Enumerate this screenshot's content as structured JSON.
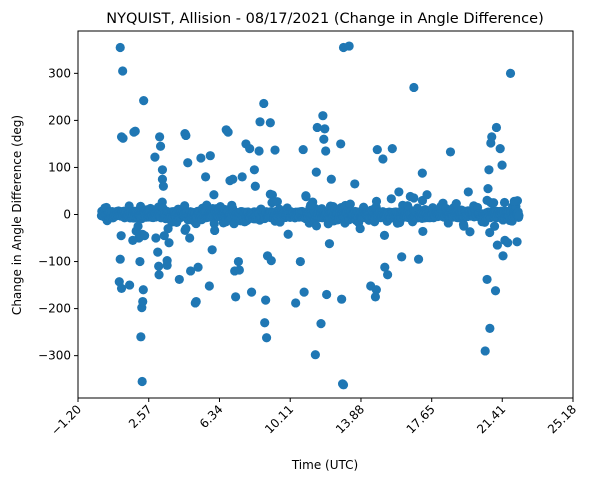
{
  "chart_data": {
    "type": "scatter",
    "title": "NYQUIST, Allision - 08/17/2021 (Change in Angle Difference)",
    "xlabel": "Time (UTC)",
    "ylabel": "Change in Angle Difference (deg)",
    "xlim": [
      -1.2,
      25.18
    ],
    "ylim": [
      -390,
      390
    ],
    "x_ticks": [
      -1.2,
      2.57,
      6.34,
      10.11,
      13.88,
      17.65,
      21.41,
      25.18
    ],
    "x_tick_labels": [
      "−1.20",
      "2.57",
      "6.34",
      "10.11",
      "13.88",
      "17.65",
      "21.41",
      "25.18"
    ],
    "y_ticks": [
      -300,
      -200,
      -100,
      0,
      100,
      200,
      300
    ],
    "y_tick_labels": [
      "−300",
      "−200",
      "−100",
      "0",
      "100",
      "200",
      "300"
    ],
    "grid": false,
    "marker_color": "#1f77b4",
    "points": [
      [
        1.05,
        355
      ],
      [
        1.18,
        305
      ],
      [
        1.12,
        165
      ],
      [
        1.2,
        162
      ],
      [
        1.0,
        -143
      ],
      [
        1.12,
        -157
      ],
      [
        1.55,
        -150
      ],
      [
        1.1,
        -45
      ],
      [
        1.05,
        -95
      ],
      [
        2.22,
        -355
      ],
      [
        2.3,
        242
      ],
      [
        2.15,
        -260
      ],
      [
        2.2,
        -198
      ],
      [
        2.25,
        -185
      ],
      [
        2.28,
        -160
      ],
      [
        2.1,
        -100
      ],
      [
        2.05,
        -50
      ],
      [
        2.35,
        -45
      ],
      [
        1.78,
        175
      ],
      [
        1.85,
        177
      ],
      [
        1.72,
        -55
      ],
      [
        1.9,
        -35
      ],
      [
        2.0,
        -25
      ],
      [
        2.9,
        122
      ],
      [
        2.95,
        -50
      ],
      [
        3.15,
        165
      ],
      [
        3.2,
        145
      ],
      [
        3.3,
        95
      ],
      [
        3.3,
        75
      ],
      [
        3.35,
        60
      ],
      [
        3.1,
        -110
      ],
      [
        3.12,
        -128
      ],
      [
        3.05,
        -80
      ],
      [
        3.4,
        -45
      ],
      [
        3.55,
        -108
      ],
      [
        3.55,
        -98
      ],
      [
        3.65,
        -60
      ],
      [
        3.6,
        -30
      ],
      [
        4.2,
        -138
      ],
      [
        4.5,
        172
      ],
      [
        4.55,
        168
      ],
      [
        4.65,
        110
      ],
      [
        4.55,
        -30
      ],
      [
        4.75,
        -50
      ],
      [
        4.8,
        -120
      ],
      [
        5.2,
        -112
      ],
      [
        5.05,
        -188
      ],
      [
        5.1,
        -185
      ],
      [
        5.35,
        120
      ],
      [
        5.6,
        80
      ],
      [
        5.85,
        125
      ],
      [
        5.8,
        -152
      ],
      [
        5.95,
        -75
      ],
      [
        6.7,
        180
      ],
      [
        6.8,
        175
      ],
      [
        6.9,
        72
      ],
      [
        7.05,
        75
      ],
      [
        7.2,
        -175
      ],
      [
        7.15,
        -120
      ],
      [
        7.35,
        -100
      ],
      [
        7.4,
        -118
      ],
      [
        7.55,
        80
      ],
      [
        7.75,
        150
      ],
      [
        7.95,
        140
      ],
      [
        8.05,
        -165
      ],
      [
        8.2,
        95
      ],
      [
        8.25,
        60
      ],
      [
        8.5,
        197
      ],
      [
        8.45,
        135
      ],
      [
        8.7,
        236
      ],
      [
        8.75,
        -230
      ],
      [
        8.85,
        -262
      ],
      [
        8.8,
        -182
      ],
      [
        8.9,
        -88
      ],
      [
        9.05,
        195
      ],
      [
        9.1,
        -98
      ],
      [
        9.05,
        43
      ],
      [
        9.3,
        137
      ],
      [
        10.0,
        -42
      ],
      [
        10.4,
        -188
      ],
      [
        10.65,
        -100
      ],
      [
        10.85,
        -165
      ],
      [
        10.8,
        138
      ],
      [
        10.95,
        38
      ],
      [
        11.2,
        20
      ],
      [
        11.45,
        -298
      ],
      [
        11.55,
        185
      ],
      [
        11.5,
        90
      ],
      [
        11.75,
        -232
      ],
      [
        11.85,
        210
      ],
      [
        11.95,
        182
      ],
      [
        11.9,
        160
      ],
      [
        12.05,
        -170
      ],
      [
        12.0,
        135
      ],
      [
        12.2,
        -62
      ],
      [
        12.3,
        75
      ],
      [
        12.95,
        355
      ],
      [
        13.25,
        358
      ],
      [
        12.8,
        150
      ],
      [
        12.85,
        -180
      ],
      [
        12.9,
        -360
      ],
      [
        12.95,
        -362
      ],
      [
        13.55,
        65
      ],
      [
        14.4,
        -152
      ],
      [
        14.65,
        -175
      ],
      [
        14.75,
        138
      ],
      [
        14.7,
        -160
      ],
      [
        15.05,
        118
      ],
      [
        15.15,
        -112
      ],
      [
        15.3,
        -128
      ],
      [
        15.55,
        140
      ],
      [
        15.9,
        48
      ],
      [
        16.05,
        -90
      ],
      [
        16.7,
        270
      ],
      [
        16.7,
        35
      ],
      [
        16.95,
        -95
      ],
      [
        17.15,
        88
      ],
      [
        17.4,
        42
      ],
      [
        18.65,
        133
      ],
      [
        19.6,
        48
      ],
      [
        20.5,
        -290
      ],
      [
        20.6,
        -138
      ],
      [
        20.75,
        -242
      ],
      [
        20.85,
        165
      ],
      [
        20.8,
        152
      ],
      [
        20.7,
        95
      ],
      [
        20.65,
        55
      ],
      [
        21.1,
        185
      ],
      [
        21.05,
        -162
      ],
      [
        21.15,
        -65
      ],
      [
        21.3,
        140
      ],
      [
        21.4,
        105
      ],
      [
        21.45,
        -88
      ],
      [
        21.55,
        -55
      ],
      [
        21.7,
        -60
      ],
      [
        21.85,
        300
      ],
      [
        22.05,
        28
      ],
      [
        22.2,
        -58
      ],
      [
        20.95,
        25
      ],
      [
        21.0,
        -25
      ]
    ]
  }
}
